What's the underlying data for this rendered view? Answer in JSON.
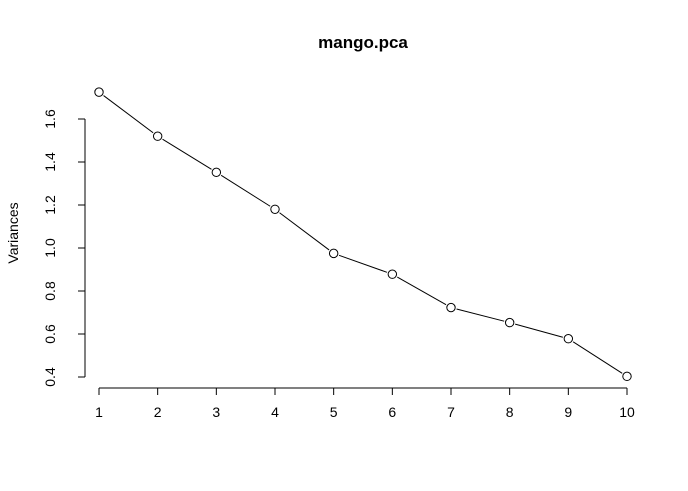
{
  "chart_data": {
    "type": "line",
    "title": "mango.pca",
    "xlabel": "",
    "ylabel": "Variances",
    "x": [
      1,
      2,
      3,
      4,
      5,
      6,
      7,
      8,
      9,
      10
    ],
    "series": [
      {
        "values": [
          1.725,
          1.52,
          1.352,
          1.18,
          0.975,
          0.878,
          0.723,
          0.653,
          0.578,
          0.403
        ]
      }
    ],
    "xticks": [
      1,
      2,
      3,
      4,
      5,
      6,
      7,
      8,
      9,
      10
    ],
    "yticks": [
      "0.4",
      "0.6",
      "0.8",
      "1.0",
      "1.2",
      "1.4",
      "1.6"
    ],
    "xlim": [
      1,
      10
    ],
    "ylim": [
      0.4,
      1.6
    ],
    "marker": "open-circle",
    "grid": false,
    "legend": "none",
    "colors": {
      "line": "#000000",
      "marker_fill": "#ffffff",
      "axis": "#000000"
    }
  }
}
